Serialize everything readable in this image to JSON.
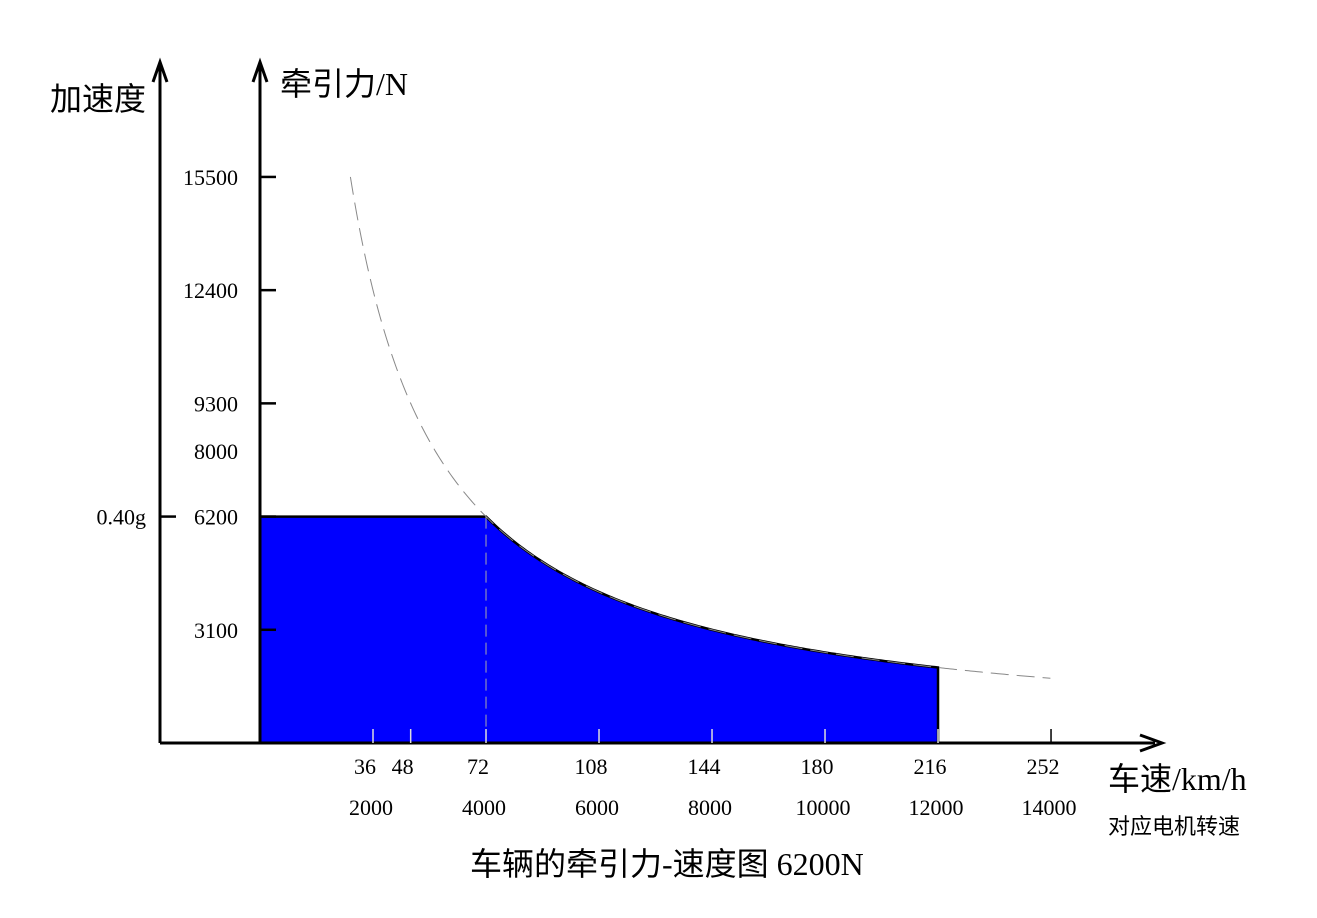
{
  "chart_data": {
    "type": "area",
    "title": "车辆的牵引力-速度图 6200N",
    "ylabel": "牵引力/N",
    "ylabel_left": "加速度",
    "xlabel": "车速/km/h",
    "xlabel_secondary": "对应电机转速",
    "xlim": [
      0,
      280
    ],
    "ylim": [
      0,
      18000
    ],
    "x_ticks": [
      36,
      48,
      72,
      108,
      144,
      180,
      216,
      252
    ],
    "x_tick_labels": [
      "36",
      "48",
      "72",
      "108",
      "144",
      "180",
      "216",
      "252"
    ],
    "x_secondary_ticks": [
      36,
      72,
      108,
      144,
      180,
      216,
      252
    ],
    "x_secondary_tick_labels": [
      "2000",
      "4000",
      "6000",
      "8000",
      "10000",
      "12000",
      "14000"
    ],
    "y_ticks": [
      3100,
      6200,
      8000,
      9300,
      12400,
      15500
    ],
    "y_tick_labels": [
      "3100",
      "6200",
      "8000",
      "9300",
      "12400",
      "15500"
    ],
    "left_axis_ticks": [
      {
        "value": 6200,
        "label": "0.40g"
      }
    ],
    "constant_force": 6200,
    "base_speed": 72,
    "max_speed": 216,
    "dashed_curve_range": [
      28.8,
      252
    ],
    "fill_color": "#0000ff",
    "grid": false
  }
}
